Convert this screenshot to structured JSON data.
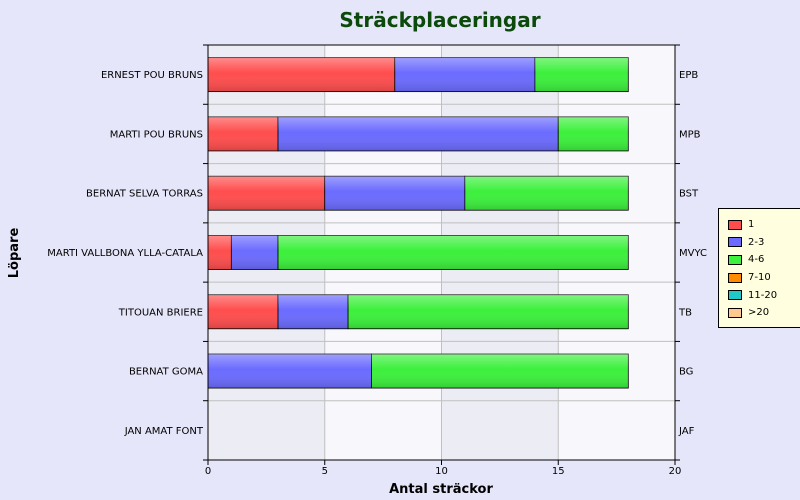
{
  "chart_data": {
    "type": "bar",
    "orientation": "horizontal",
    "stacked": true,
    "title": "Sträckplaceringar",
    "xlabel": "Antal sträckor",
    "ylabel": "Löpare",
    "xlim": [
      0,
      20
    ],
    "xticks": [
      0,
      5,
      10,
      15,
      20
    ],
    "grid": true,
    "legend_position": "right",
    "categories": [
      "ERNEST POU BRUNS",
      "MARTI POU BRUNS",
      "BERNAT SELVA TORRAS",
      "MARTI VALLBONA YLLA-CATALA",
      "TITOUAN BRIERE",
      "BERNAT GOMA",
      "JAN AMAT FONT"
    ],
    "right_labels": [
      "EPB",
      "MPB",
      "BST",
      "MVYC",
      "TB",
      "BG",
      "JAF"
    ],
    "series": [
      {
        "name": "1",
        "color": "#ff4d4d",
        "values": [
          8,
          3,
          5,
          1,
          3,
          0,
          0
        ]
      },
      {
        "name": "2-3",
        "color": "#6b6bff",
        "values": [
          6,
          12,
          6,
          2,
          3,
          7,
          0
        ]
      },
      {
        "name": "4-6",
        "color": "#3cf03c",
        "values": [
          4,
          3,
          7,
          15,
          12,
          11,
          0
        ]
      },
      {
        "name": "7-10",
        "color": "#ff8c00",
        "values": [
          0,
          0,
          0,
          0,
          0,
          0,
          0
        ]
      },
      {
        "name": "11-20",
        "color": "#20c8c8",
        "values": [
          0,
          0,
          0,
          0,
          0,
          0,
          0
        ]
      },
      {
        "name": ">20",
        "color": "#ffc890",
        "values": [
          0,
          0,
          0,
          0,
          0,
          0,
          0
        ]
      }
    ]
  }
}
